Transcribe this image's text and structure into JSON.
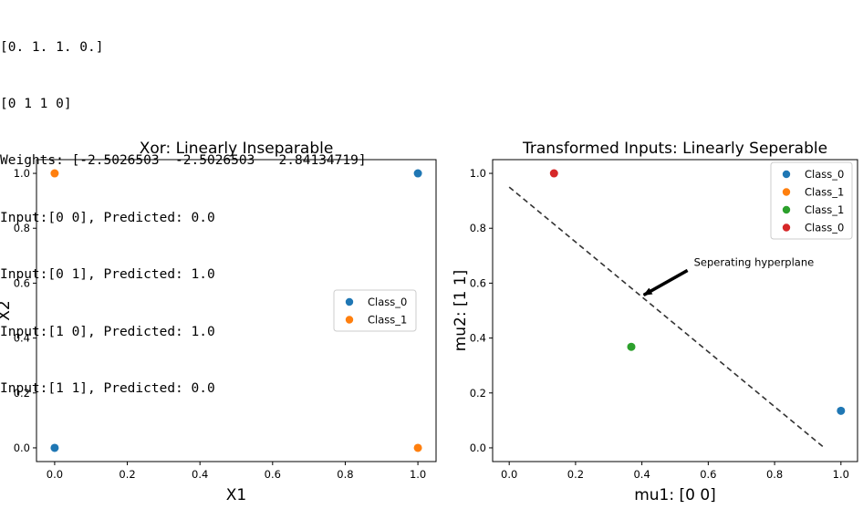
{
  "console": {
    "lines": [
      "[0. 1. 1. 0.]",
      "[0 1 1 0]",
      "Weights: [-2.5026503  -2.5026503   2.84134719]",
      "Input:[0 0], Predicted: 0.0",
      "Input:[0 1], Predicted: 1.0",
      "Input:[1 0], Predicted: 1.0",
      "Input:[1 1], Predicted: 0.0"
    ]
  },
  "chart_data": [
    {
      "type": "scatter",
      "title": "Xor: Linearly Inseparable",
      "xlabel": "X1",
      "ylabel": "X2",
      "xlim": [
        -0.05,
        1.05
      ],
      "ylim": [
        -0.05,
        1.05
      ],
      "xticks": [
        "0.0",
        "0.2",
        "0.4",
        "0.6",
        "0.8",
        "1.0"
      ],
      "yticks": [
        "0.0",
        "0.2",
        "0.4",
        "0.6",
        "0.8",
        "1.0"
      ],
      "grid": false,
      "legend_position": "center-right",
      "series": [
        {
          "name": "Class_0",
          "color": "#1f77b4",
          "points": [
            [
              0,
              0
            ],
            [
              1,
              1
            ]
          ]
        },
        {
          "name": "Class_1",
          "color": "#ff7f0e",
          "points": [
            [
              0,
              1
            ],
            [
              1,
              0
            ]
          ]
        }
      ]
    },
    {
      "type": "scatter",
      "title": "Transformed Inputs: Linearly Seperable",
      "xlabel": "mu1: [0 0]",
      "ylabel": "mu2: [1 1]",
      "xlim": [
        -0.05,
        1.05
      ],
      "ylim": [
        -0.05,
        1.05
      ],
      "xticks": [
        "0.0",
        "0.2",
        "0.4",
        "0.6",
        "0.8",
        "1.0"
      ],
      "yticks": [
        "0.0",
        "0.2",
        "0.4",
        "0.6",
        "0.8",
        "1.0"
      ],
      "grid": false,
      "legend_position": "top-right",
      "series": [
        {
          "name": "Class_0",
          "color": "#1f77b4",
          "points": [
            [
              1.0,
              0.135
            ]
          ]
        },
        {
          "name": "Class_1",
          "color": "#ff7f0e",
          "points": [
            [
              0.368,
              0.368
            ]
          ]
        },
        {
          "name": "Class_1",
          "color": "#2ca02c",
          "points": [
            [
              0.368,
              0.368
            ]
          ]
        },
        {
          "name": "Class_0",
          "color": "#d62728",
          "points": [
            [
              0.135,
              1.0
            ]
          ]
        }
      ],
      "line": {
        "points": [
          [
            0,
            0.95
          ],
          [
            0.95,
            0
          ]
        ],
        "style": "dashed",
        "color": "#333333"
      },
      "annotation": {
        "text": "Seperating hyperplane",
        "target": [
          0.4,
          0.55
        ]
      }
    }
  ]
}
